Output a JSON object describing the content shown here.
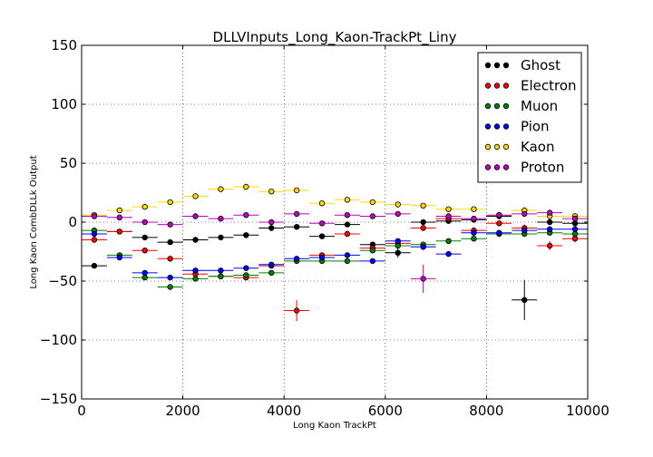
{
  "chart_data": {
    "type": "scatter",
    "title": "DLLVInputs_Long_Kaon-TrackPt_Liny",
    "xlabel": "Long Kaon TrackPt",
    "ylabel": "Long Kaon CombDLLk Output",
    "xlim": [
      0,
      10000
    ],
    "ylim": [
      -150,
      150
    ],
    "xticks": [
      0,
      2000,
      4000,
      6000,
      8000,
      10000
    ],
    "yticks": [
      -150,
      -100,
      -50,
      0,
      50,
      100,
      150
    ],
    "grid": true,
    "legend_position": "top-right",
    "bin_half_width": 250,
    "x": [
      250,
      750,
      1250,
      1750,
      2250,
      2750,
      3250,
      3750,
      4250,
      4750,
      5250,
      5750,
      6250,
      6750,
      7250,
      7750,
      8250,
      8750,
      9250,
      9750
    ],
    "series": [
      {
        "name": "Ghost",
        "color": "#000000",
        "values": [
          -37,
          -8,
          -13,
          -17,
          -15,
          -13,
          -11,
          -5,
          -4,
          -12,
          -2,
          -19,
          -26,
          0,
          1,
          2,
          5,
          -66,
          0,
          -1
        ],
        "errors": [
          1,
          1,
          1,
          1,
          1,
          1,
          1,
          1,
          1,
          1,
          1,
          2,
          4,
          1,
          1,
          1,
          2,
          17,
          2,
          2
        ]
      },
      {
        "name": "Electron",
        "color": "#ff0000",
        "values": [
          -15,
          -8,
          -24,
          -31,
          -44,
          -46,
          -47,
          -37,
          -75,
          -28,
          -10,
          -22,
          -18,
          -5,
          3,
          -7,
          -1,
          -5,
          -20,
          -14
        ],
        "errors": [
          1,
          1,
          1,
          1,
          1,
          1,
          1,
          1,
          9,
          1,
          1,
          1,
          2,
          2,
          2,
          2,
          2,
          3,
          4,
          3
        ]
      },
      {
        "name": "Muon",
        "color": "#008000",
        "values": [
          -7,
          -28,
          -47,
          -55,
          -48,
          -46,
          -45,
          -43,
          -33,
          -33,
          -33,
          -24,
          -20,
          -19,
          -16,
          -14,
          -10,
          -10,
          -9,
          -10
        ],
        "errors": [
          1,
          1,
          1,
          1,
          1,
          1,
          1,
          1,
          1,
          1,
          1,
          1,
          1,
          1,
          1,
          1,
          1,
          1,
          1,
          1
        ]
      },
      {
        "name": "Pion",
        "color": "#0000ff",
        "values": [
          -10,
          -30,
          -43,
          -47,
          -41,
          -41,
          -39,
          -36,
          -31,
          -30,
          -28,
          -33,
          -16,
          -21,
          -27,
          -9,
          -9,
          -7,
          -6,
          -6
        ],
        "errors": [
          1,
          1,
          1,
          1,
          1,
          1,
          1,
          1,
          1,
          1,
          1,
          1,
          1,
          1,
          1,
          1,
          1,
          1,
          1,
          1
        ]
      },
      {
        "name": "Kaon",
        "color": "#ffd700",
        "values": [
          6,
          10,
          13,
          17,
          22,
          28,
          30,
          26,
          27,
          16,
          19,
          17,
          15,
          14,
          11,
          11,
          6,
          10,
          5,
          5
        ],
        "errors": [
          1,
          1,
          1,
          1,
          1,
          1,
          1,
          1,
          1,
          1,
          1,
          1,
          1,
          1,
          1,
          1,
          1,
          1,
          1,
          1
        ]
      },
      {
        "name": "Proton",
        "color": "#bf00bf",
        "values": [
          5,
          4,
          0,
          -2,
          5,
          3,
          6,
          0,
          7,
          -1,
          6,
          5,
          7,
          -48,
          5,
          3,
          6,
          7,
          8,
          3
        ],
        "errors": [
          1,
          1,
          1,
          1,
          1,
          1,
          1,
          1,
          1,
          1,
          1,
          1,
          1,
          12,
          1,
          1,
          1,
          1,
          2,
          1
        ]
      }
    ]
  }
}
